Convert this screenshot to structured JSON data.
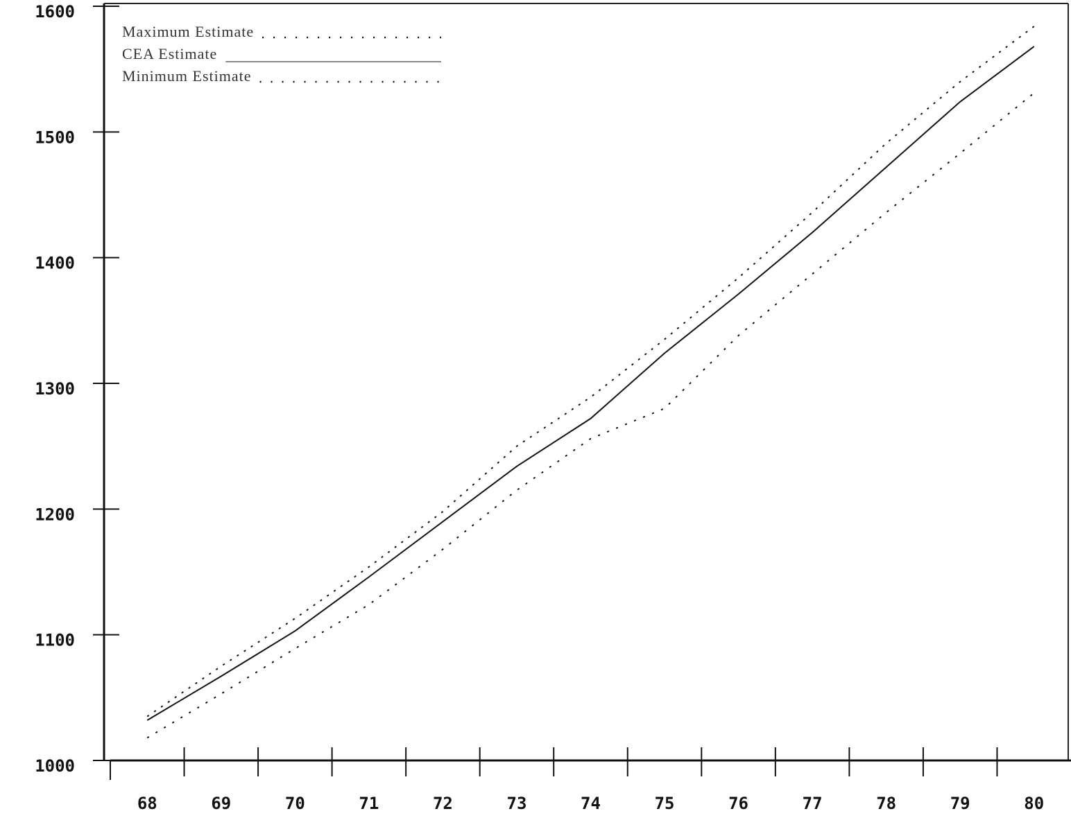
{
  "chart_data": {
    "type": "line",
    "categories": [
      "68",
      "69",
      "70",
      "71",
      "72",
      "73",
      "74",
      "75",
      "76",
      "77",
      "78",
      "79",
      "80"
    ],
    "series": [
      {
        "name": "Maximum Estimate",
        "color": "#111111",
        "dash": "3 9",
        "values": [
          1035,
          1075,
          1113,
          1154,
          1198,
          1250,
          1289,
          1335,
          1384,
          1436,
          1491,
          1540,
          1584
        ]
      },
      {
        "name": "CEA Estimate",
        "color": "#111111",
        "dash": "none",
        "values": [
          1032,
          1067,
          1103,
          1146,
          1190,
          1234,
          1272,
          1324,
          1371,
          1420,
          1472,
          1524,
          1568
        ]
      },
      {
        "name": "Minimum Estimate",
        "color": "#111111",
        "dash": "3 11",
        "values": [
          1018,
          1053,
          1089,
          1124,
          1168,
          1215,
          1256,
          1280,
          1338,
          1387,
          1436,
          1483,
          1531
        ]
      }
    ],
    "ylim": [
      1000,
      1600
    ],
    "yticks": [
      1000,
      1100,
      1200,
      1300,
      1400,
      1500,
      1600
    ]
  }
}
